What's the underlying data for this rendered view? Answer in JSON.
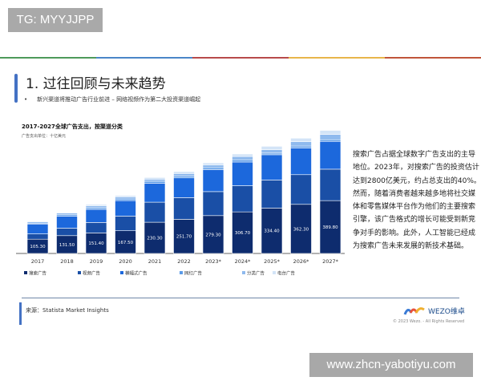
{
  "watermark": "TG: MYYJJPP",
  "top_line_colors": [
    "#4e9a5a",
    "#4a86c8",
    "#b84a4a",
    "#e8b64a",
    "#c0553a"
  ],
  "header": {
    "title": "1. 过往回顾与未来趋势",
    "bullet": "•",
    "subtitle": "新兴渠道将推动广告行业前进 – 网络视频作为第二大投资渠道崛起"
  },
  "chart_data": {
    "type": "bar",
    "stacked": true,
    "title": "2017-2027全球广告支出，按渠道分类",
    "unit_label": "广告支出单位：十亿美元",
    "categories": [
      "2017",
      "2018",
      "2019",
      "2020",
      "2021",
      "2022",
      "2023*",
      "2024*",
      "2025*",
      "2026*",
      "2027*"
    ],
    "series": [
      {
        "name": "搜索广告",
        "color": "#0e2c6e",
        "values": [
          105.3,
          131.5,
          151.4,
          167.5,
          230.3,
          251.7,
          279.3,
          306.7,
          334.4,
          362.3,
          389.8
        ],
        "labels": [
          "105.30",
          "131.50",
          "151.40",
          "167.50",
          "230.30",
          "251.70",
          "279.30",
          "306.70",
          "334.40",
          "362.30",
          "389.80"
        ]
      },
      {
        "name": "视频广告",
        "color": "#1a4fa6",
        "values": [
          39,
          55,
          77,
          108,
          148,
          160,
          177,
          193,
          207,
          219,
          232
        ]
      },
      {
        "name": "横幅式广告",
        "color": "#1c68dc",
        "values": [
          73,
          89,
          97,
          114,
          140,
          146,
          162,
          175,
          187,
          197,
          205
        ]
      },
      {
        "name": "网红广告",
        "color": "#5b9be8",
        "values": [
          6,
          10,
          12,
          12,
          14,
          14,
          14,
          16,
          12,
          14,
          12
        ]
      },
      {
        "name": "分类广告",
        "color": "#8fbaee",
        "values": [
          10,
          12,
          14,
          16,
          16,
          18,
          20,
          25,
          25,
          33,
          39
        ]
      },
      {
        "name": "电台广告",
        "color": "#d3e4f7",
        "values": [
          5,
          5,
          10,
          10,
          12,
          14,
          16,
          18,
          25,
          25,
          30
        ]
      }
    ],
    "grid": false,
    "legend_placement": "bottom"
  },
  "side_text": "搜索广告占据全球数字广告支出的主导地位。2023年，对搜索广告的投资估计达到2800亿美元，约占总支出的40%。然而，随着消费者越来越多地将社交媒体和零售媒体平台作为他们的主要搜索引擎，该广告格式的增长可能受到新竞争对手的影响。此外，人工智能已经成为搜索广告未来发展的新技术基础。",
  "footer": {
    "source": "来源：Statista Market Insights",
    "logo_text": "WEZO维卓",
    "copyright": "© 2023 Wezo. - All Rights Reserved"
  },
  "url_watermark": "www.zhcn-yabotiyu.com"
}
